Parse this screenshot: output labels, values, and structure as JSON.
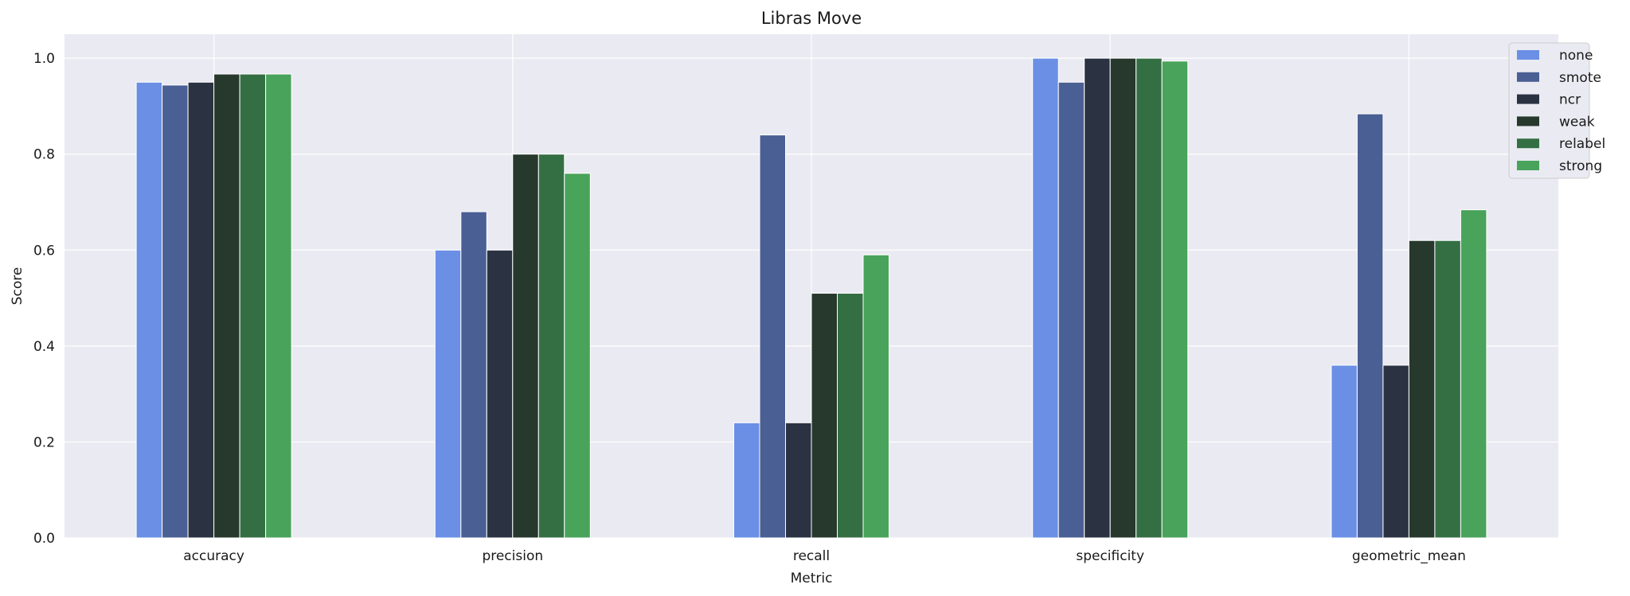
{
  "chart_data": {
    "type": "bar",
    "title": "Libras Move",
    "xlabel": "Metric",
    "ylabel": "Score",
    "categories": [
      "accuracy",
      "precision",
      "recall",
      "specificity",
      "geometric_mean"
    ],
    "ylim": [
      0,
      1.05
    ],
    "yticks": [
      "0.0",
      "0.2",
      "0.4",
      "0.6",
      "0.8",
      "1.0"
    ],
    "grid": true,
    "legend_position": "top-right",
    "series": [
      {
        "name": "none",
        "color": "#6a8fe5",
        "values": [
          0.95,
          0.6,
          0.24,
          1.0,
          0.36
        ]
      },
      {
        "name": "smote",
        "color": "#4a5f93",
        "values": [
          0.944,
          0.68,
          0.84,
          0.95,
          0.884
        ]
      },
      {
        "name": "ncr",
        "color": "#2b3242",
        "values": [
          0.95,
          0.6,
          0.24,
          1.0,
          0.36
        ]
      },
      {
        "name": "weak",
        "color": "#27382c",
        "values": [
          0.967,
          0.8,
          0.51,
          1.0,
          0.62
        ]
      },
      {
        "name": "relabel",
        "color": "#346f44",
        "values": [
          0.967,
          0.8,
          0.51,
          1.0,
          0.62
        ]
      },
      {
        "name": "strong",
        "color": "#49a35a",
        "values": [
          0.967,
          0.76,
          0.59,
          0.994,
          0.684
        ]
      }
    ],
    "colors": {
      "plot_bg": "#eaeaf2",
      "grid": "#ffffff",
      "legend_bg": "#eaeaf2",
      "legend_border": "#cccccc"
    }
  }
}
